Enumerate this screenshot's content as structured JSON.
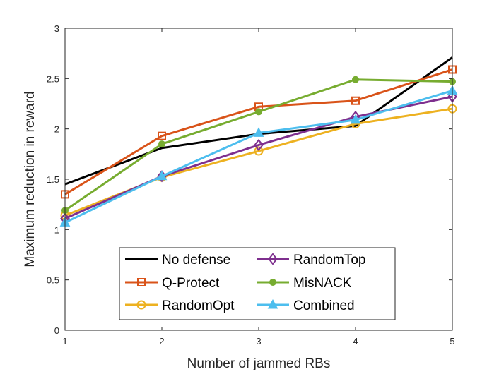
{
  "chart_data": {
    "type": "line",
    "title": "",
    "xlabel": "Number of jammed RBs",
    "ylabel": "Maximum reduction in reward",
    "x": [
      1,
      2,
      3,
      4,
      5
    ],
    "xlim": [
      1,
      5
    ],
    "ylim": [
      0,
      3
    ],
    "xticks": [
      "1",
      "2",
      "3",
      "4",
      "5"
    ],
    "yticks": [
      "0",
      "0.5",
      "1",
      "1.5",
      "2",
      "2.5",
      "3"
    ],
    "grid": false,
    "legend_position": "bottom-center",
    "series": [
      {
        "name": "No defense",
        "values": [
          1.45,
          1.81,
          1.95,
          2.03,
          2.71
        ],
        "color": "#000000",
        "marker": "none"
      },
      {
        "name": "Q-Protect",
        "values": [
          1.35,
          1.93,
          2.22,
          2.28,
          2.59
        ],
        "color": "#D95319",
        "marker": "square"
      },
      {
        "name": "RandomOpt",
        "values": [
          1.14,
          1.52,
          1.78,
          2.05,
          2.2
        ],
        "color": "#EDB120",
        "marker": "circle"
      },
      {
        "name": "RandomTop",
        "values": [
          1.11,
          1.53,
          1.84,
          2.12,
          2.32
        ],
        "color": "#7E2F8E",
        "marker": "diamond"
      },
      {
        "name": "MisNACK",
        "values": [
          1.19,
          1.85,
          2.17,
          2.49,
          2.47
        ],
        "color": "#77AC30",
        "marker": "dot"
      },
      {
        "name": "Combined",
        "values": [
          1.07,
          1.53,
          1.96,
          2.09,
          2.38
        ],
        "color": "#4DBEEE",
        "marker": "triangle"
      }
    ]
  }
}
